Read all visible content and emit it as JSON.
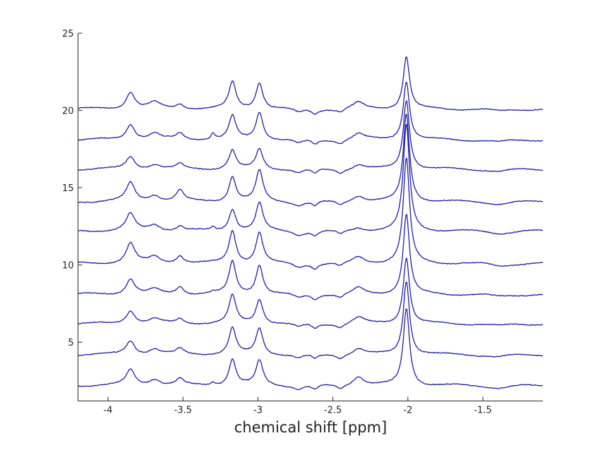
{
  "chart_data": {
    "type": "line",
    "title": "",
    "xlabel": "chemical shift [ppm]",
    "ylabel": "",
    "xlim": [
      -4.2,
      -1.1
    ],
    "ylim": [
      1.2,
      25
    ],
    "xticks": [
      -4,
      -3.5,
      -3,
      -2.5,
      -2,
      -1.5
    ],
    "xtick_labels": [
      "-4",
      "-3.5",
      "-3",
      "-2.5",
      "-2",
      "-1.5"
    ],
    "yticks": [
      5,
      10,
      15,
      20,
      25
    ],
    "ytick_labels": [
      "5",
      "10",
      "15",
      "20",
      "25"
    ],
    "grid": false,
    "legend": "none",
    "line_color": "#1f1fa8",
    "peaks": [
      {
        "ppm": -3.85,
        "width": 0.035
      },
      {
        "ppm": -3.69,
        "width": 0.045
      },
      {
        "ppm": -3.52,
        "width": 0.03
      },
      {
        "ppm": -3.3,
        "width": 0.015
      },
      {
        "ppm": -3.17,
        "width": 0.028
      },
      {
        "ppm": -2.99,
        "width": 0.028
      },
      {
        "ppm": -2.33,
        "width": 0.045
      },
      {
        "ppm": -2.01,
        "width": 0.025
      }
    ],
    "dips": [
      {
        "ppm": -2.73,
        "width": 0.04,
        "depth": 0.25
      },
      {
        "ppm": -2.62,
        "width": 0.025,
        "depth": 0.3
      },
      {
        "ppm": -2.45,
        "width": 0.03,
        "depth": 0.25
      },
      {
        "ppm": -1.39,
        "width": 0.08,
        "depth": 0.15
      }
    ],
    "series": [
      {
        "offset": 2.2,
        "heights": [
          1.0,
          0.4,
          0.4,
          0.2,
          1.7,
          1.6,
          0.6,
          5.0
        ]
      },
      {
        "offset": 4.2,
        "heights": [
          0.9,
          0.35,
          0.35,
          0.0,
          1.7,
          1.7,
          0.4,
          4.8
        ]
      },
      {
        "offset": 6.2,
        "heights": [
          0.85,
          0.3,
          0.3,
          0.0,
          1.8,
          1.6,
          0.4,
          4.3
        ]
      },
      {
        "offset": 8.1,
        "heights": [
          1.0,
          0.3,
          0.5,
          0.1,
          2.1,
          1.9,
          0.4,
          5.2
        ]
      },
      {
        "offset": 10.1,
        "heights": [
          1.3,
          0.4,
          0.5,
          0.0,
          2.1,
          2.0,
          0.4,
          6.8
        ]
      },
      {
        "offset": 12.2,
        "heights": [
          1.1,
          0.4,
          0.3,
          0.2,
          1.4,
          1.8,
          0.2,
          6.9
        ]
      },
      {
        "offset": 14.1,
        "heights": [
          1.2,
          0.4,
          0.7,
          0.0,
          1.6,
          2.0,
          0.4,
          5.7
        ]
      },
      {
        "offset": 16.2,
        "heights": [
          0.8,
          0.3,
          0.3,
          0.0,
          1.2,
          1.3,
          0.3,
          4.5
        ]
      },
      {
        "offset": 18.1,
        "heights": [
          1.0,
          0.4,
          0.4,
          0.4,
          1.5,
          1.8,
          0.4,
          3.8
        ]
      },
      {
        "offset": 20.1,
        "heights": [
          1.1,
          0.4,
          0.3,
          0.0,
          1.7,
          1.7,
          0.4,
          3.4
        ]
      }
    ]
  }
}
